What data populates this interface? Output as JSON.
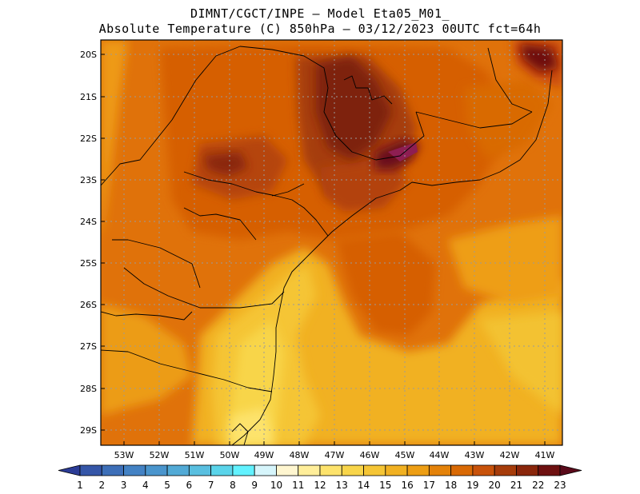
{
  "title": {
    "line1": "DIMNT/CGCT/INPE –  Model Eta05_M01_",
    "line2": "Absolute Temperature (C) 850hPa –  03/12/2023 00UTC fct=64h"
  },
  "map": {
    "lat_labels": [
      "20S",
      "21S",
      "22S",
      "23S",
      "24S",
      "25S",
      "26S",
      "27S",
      "28S",
      "29S"
    ],
    "lon_labels": [
      "53W",
      "52W",
      "51W",
      "50W",
      "49W",
      "48W",
      "47W",
      "46W",
      "45W",
      "44W",
      "43W",
      "42W",
      "41W"
    ],
    "background_color": "#e0720a",
    "gridlines": true
  },
  "colorbar": {
    "labels": [
      "1",
      "2",
      "3",
      "4",
      "5",
      "6",
      "7",
      "8",
      "9",
      "10",
      "11",
      "12",
      "13",
      "14",
      "15",
      "16",
      "17",
      "18",
      "19",
      "20",
      "21",
      "22",
      "23"
    ],
    "colors": [
      "#2b3c96",
      "#3556a8",
      "#3d6fb8",
      "#4382c4",
      "#4a95cd",
      "#52aad6",
      "#59bfe0",
      "#5ad4ea",
      "#62f2ff",
      "#d6f5fb",
      "#fff6d0",
      "#ffee9a",
      "#fde36c",
      "#f8d54a",
      "#f5c535",
      "#f1b122",
      "#ed9e14",
      "#e48209",
      "#d96904",
      "#c8520a",
      "#a63c0a",
      "#8a260b",
      "#6e1010",
      "#5a0a1a"
    ]
  }
}
